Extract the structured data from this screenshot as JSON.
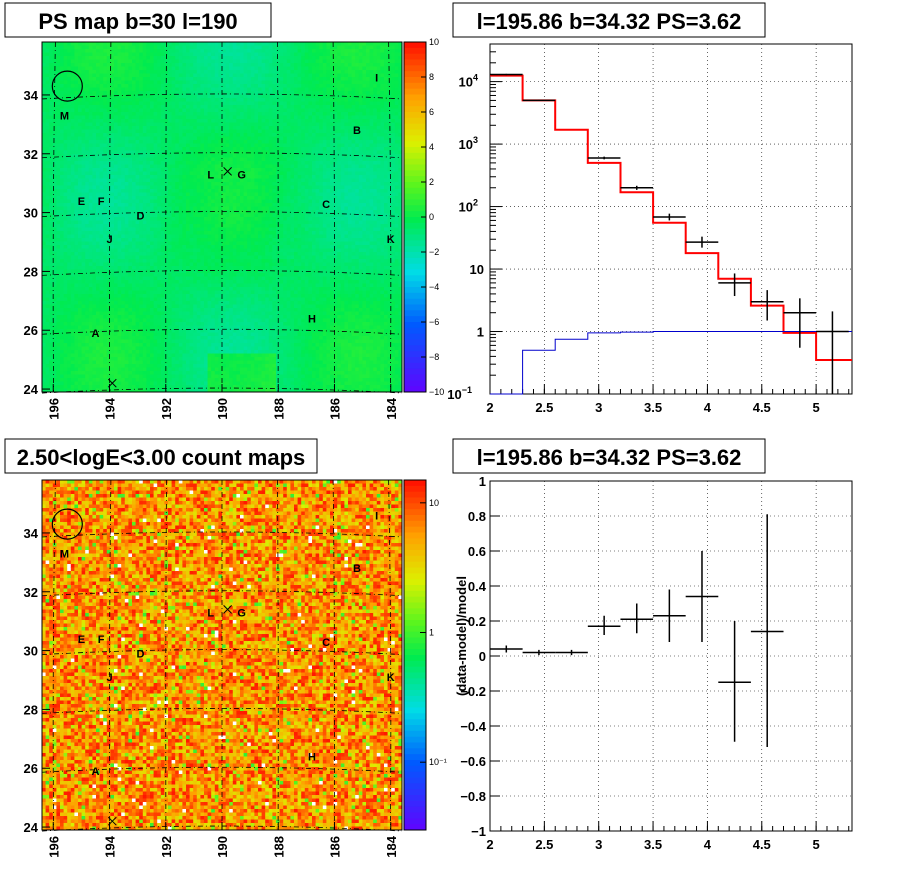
{
  "chart_data": [
    {
      "type": "heatmap",
      "title": "PS map b=30 l=190",
      "xlabel": "",
      "ylabel": "",
      "x_ticks": [
        "196",
        "194",
        "192",
        "190",
        "188",
        "186",
        "184"
      ],
      "y_ticks": [
        "24",
        "26",
        "28",
        "30",
        "32",
        "34"
      ],
      "xlim": [
        196.4,
        183.6
      ],
      "ylim": [
        23.9,
        35.8
      ],
      "color_scale": {
        "min": -10,
        "max": 10,
        "scale": "linear",
        "ticks": [
          "10",
          "8",
          "6",
          "4",
          "2",
          "0",
          "−2",
          "−4",
          "−6",
          "−8",
          "−10"
        ]
      },
      "grid": "dash-dot",
      "sources": [
        {
          "name": "I",
          "l": 184.5,
          "b": 34.6
        },
        {
          "name": "M",
          "l": 195.6,
          "b": 33.3
        },
        {
          "name": "B",
          "l": 185.2,
          "b": 32.8
        },
        {
          "name": "L",
          "l": 190.4,
          "b": 31.3
        },
        {
          "name": "G",
          "l": 189.3,
          "b": 31.3
        },
        {
          "name": "E",
          "l": 195.0,
          "b": 30.4
        },
        {
          "name": "F",
          "l": 194.3,
          "b": 30.4
        },
        {
          "name": "D",
          "l": 192.9,
          "b": 29.9
        },
        {
          "name": "C",
          "l": 186.3,
          "b": 30.3
        },
        {
          "name": "J",
          "l": 194.0,
          "b": 29.1
        },
        {
          "name": "K",
          "l": 184.0,
          "b": 29.1
        },
        {
          "name": "H",
          "l": 186.8,
          "b": 26.4
        },
        {
          "name": "A",
          "l": 194.5,
          "b": 25.9
        }
      ],
      "markers": [
        {
          "type": "circle",
          "l": 195.5,
          "b": 34.3
        },
        {
          "type": "cross",
          "l": 189.8,
          "b": 31.4
        },
        {
          "type": "cross",
          "l": 193.9,
          "b": 24.2
        }
      ]
    },
    {
      "type": "line",
      "title": "l=195.86 b=34.32 PS=3.62",
      "xlabel": "",
      "ylabel": "",
      "xlim": [
        2,
        5.33
      ],
      "ylim": [
        0.1,
        40000
      ],
      "yscale": "log",
      "grid": true,
      "x_ticks": [
        "2",
        "2.5",
        "3",
        "3.5",
        "4",
        "4.5",
        "5"
      ],
      "y_ticks": [
        {
          "v": 10000,
          "base": "10",
          "exp": "4"
        },
        {
          "v": 1000,
          "base": "10",
          "exp": "3"
        },
        {
          "v": 100,
          "base": "10",
          "exp": "2"
        },
        {
          "v": 10,
          "base": "10",
          "exp": ""
        },
        {
          "v": 1,
          "base": "1",
          "exp": ""
        },
        {
          "v": 0.1,
          "base": "10",
          "exp": "−1"
        }
      ],
      "series": [
        {
          "color": "#ff0000",
          "style": "step",
          "edges": [
            2,
            2.3,
            2.6,
            2.9,
            3.2,
            3.5,
            3.8,
            4.1,
            4.4,
            4.7,
            5.0,
            5.33
          ],
          "values": [
            12500,
            5000,
            1700,
            500,
            170,
            55,
            18,
            7,
            2.6,
            0.95,
            0.35
          ]
        },
        {
          "color": "#0000cc",
          "style": "step",
          "edges": [
            2,
            2.3,
            2.6,
            2.9,
            3.2,
            3.5,
            3.8,
            4.1,
            4.4,
            4.7,
            5.0,
            5.33
          ],
          "values": [
            0.1,
            0.5,
            0.75,
            0.95,
            0.98,
            1,
            1,
            1,
            1,
            1,
            1
          ]
        },
        {
          "color": "#000000",
          "style": "errorbar",
          "points": [
            {
              "x": 2.15,
              "xerr": 0.15,
              "y": 13000,
              "ylo": 12700,
              "yhi": 13300
            },
            {
              "x": 2.45,
              "xerr": 0.15,
              "y": 5000,
              "ylo": 4900,
              "yhi": 5100
            },
            {
              "x": 3.05,
              "xerr": 0.15,
              "y": 600,
              "ylo": 570,
              "yhi": 630
            },
            {
              "x": 3.35,
              "xerr": 0.15,
              "y": 200,
              "ylo": 185,
              "yhi": 215
            },
            {
              "x": 3.65,
              "xerr": 0.15,
              "y": 68,
              "ylo": 60,
              "yhi": 77
            },
            {
              "x": 3.95,
              "xerr": 0.15,
              "y": 27,
              "ylo": 22,
              "yhi": 33
            },
            {
              "x": 4.25,
              "xerr": 0.15,
              "y": 6,
              "ylo": 3.7,
              "yhi": 8.5
            },
            {
              "x": 4.55,
              "xerr": 0.15,
              "y": 3,
              "ylo": 1.5,
              "yhi": 4.6
            },
            {
              "x": 4.85,
              "xerr": 0.15,
              "y": 2,
              "ylo": 0.55,
              "yhi": 3.4
            },
            {
              "x": 5.15,
              "xerr": 0.15,
              "y": 1,
              "ylo": 0.1,
              "yhi": 2.1
            }
          ]
        }
      ]
    },
    {
      "type": "heatmap",
      "title": "2.50<logE<3.00 count maps",
      "xlabel": "",
      "ylabel": "",
      "x_ticks": [
        "196",
        "194",
        "192",
        "190",
        "188",
        "186",
        "184"
      ],
      "y_ticks": [
        "24",
        "26",
        "28",
        "30",
        "32",
        "34"
      ],
      "xlim": [
        196.4,
        183.6
      ],
      "ylim": [
        23.9,
        35.8
      ],
      "color_scale": {
        "min": 0.03,
        "max": 15,
        "scale": "log",
        "ticks": [
          {
            "v": 10,
            "label": "10"
          },
          {
            "v": 1,
            "label": "1"
          },
          {
            "v": 0.1,
            "label": "10⁻¹"
          }
        ]
      },
      "grid": "dash-dot",
      "sources_same_as_panel": 0,
      "markers": [
        {
          "type": "circle",
          "l": 195.5,
          "b": 34.3
        },
        {
          "type": "cross",
          "l": 189.8,
          "b": 31.4
        },
        {
          "type": "cross",
          "l": 193.9,
          "b": 24.2
        }
      ]
    },
    {
      "type": "scatter",
      "title": "l=195.86 b=34.32 PS=3.62",
      "xlabel": "",
      "ylabel": "(data-model)/model",
      "xlim": [
        2,
        5.33
      ],
      "ylim": [
        -1,
        1
      ],
      "grid": true,
      "x_ticks": [
        "2",
        "2.5",
        "3",
        "3.5",
        "4",
        "4.5",
        "5"
      ],
      "y_ticks": [
        "1",
        "0.8",
        "0.6",
        "0.4",
        "0.2",
        "0",
        "−0.2",
        "−0.4",
        "−0.6",
        "−0.8",
        "−1"
      ],
      "series": [
        {
          "color": "#000000",
          "style": "errorbar",
          "points": [
            {
              "x": 2.15,
              "xerr": 0.15,
              "y": 0.04,
              "ylo": 0.02,
              "yhi": 0.06
            },
            {
              "x": 2.45,
              "xerr": 0.15,
              "y": 0.02,
              "ylo": 0.005,
              "yhi": 0.035
            },
            {
              "x": 2.75,
              "xerr": 0.15,
              "y": 0.02,
              "ylo": 0.005,
              "yhi": 0.035
            },
            {
              "x": 3.05,
              "xerr": 0.15,
              "y": 0.17,
              "ylo": 0.12,
              "yhi": 0.23
            },
            {
              "x": 3.35,
              "xerr": 0.15,
              "y": 0.21,
              "ylo": 0.13,
              "yhi": 0.3
            },
            {
              "x": 3.65,
              "xerr": 0.15,
              "y": 0.23,
              "ylo": 0.08,
              "yhi": 0.38
            },
            {
              "x": 3.95,
              "xerr": 0.15,
              "y": 0.34,
              "ylo": 0.08,
              "yhi": 0.6
            },
            {
              "x": 4.25,
              "xerr": 0.15,
              "y": -0.15,
              "ylo": -0.49,
              "yhi": 0.2
            },
            {
              "x": 4.55,
              "xerr": 0.15,
              "y": 0.14,
              "ylo": -0.52,
              "yhi": 0.81
            }
          ]
        }
      ]
    }
  ]
}
